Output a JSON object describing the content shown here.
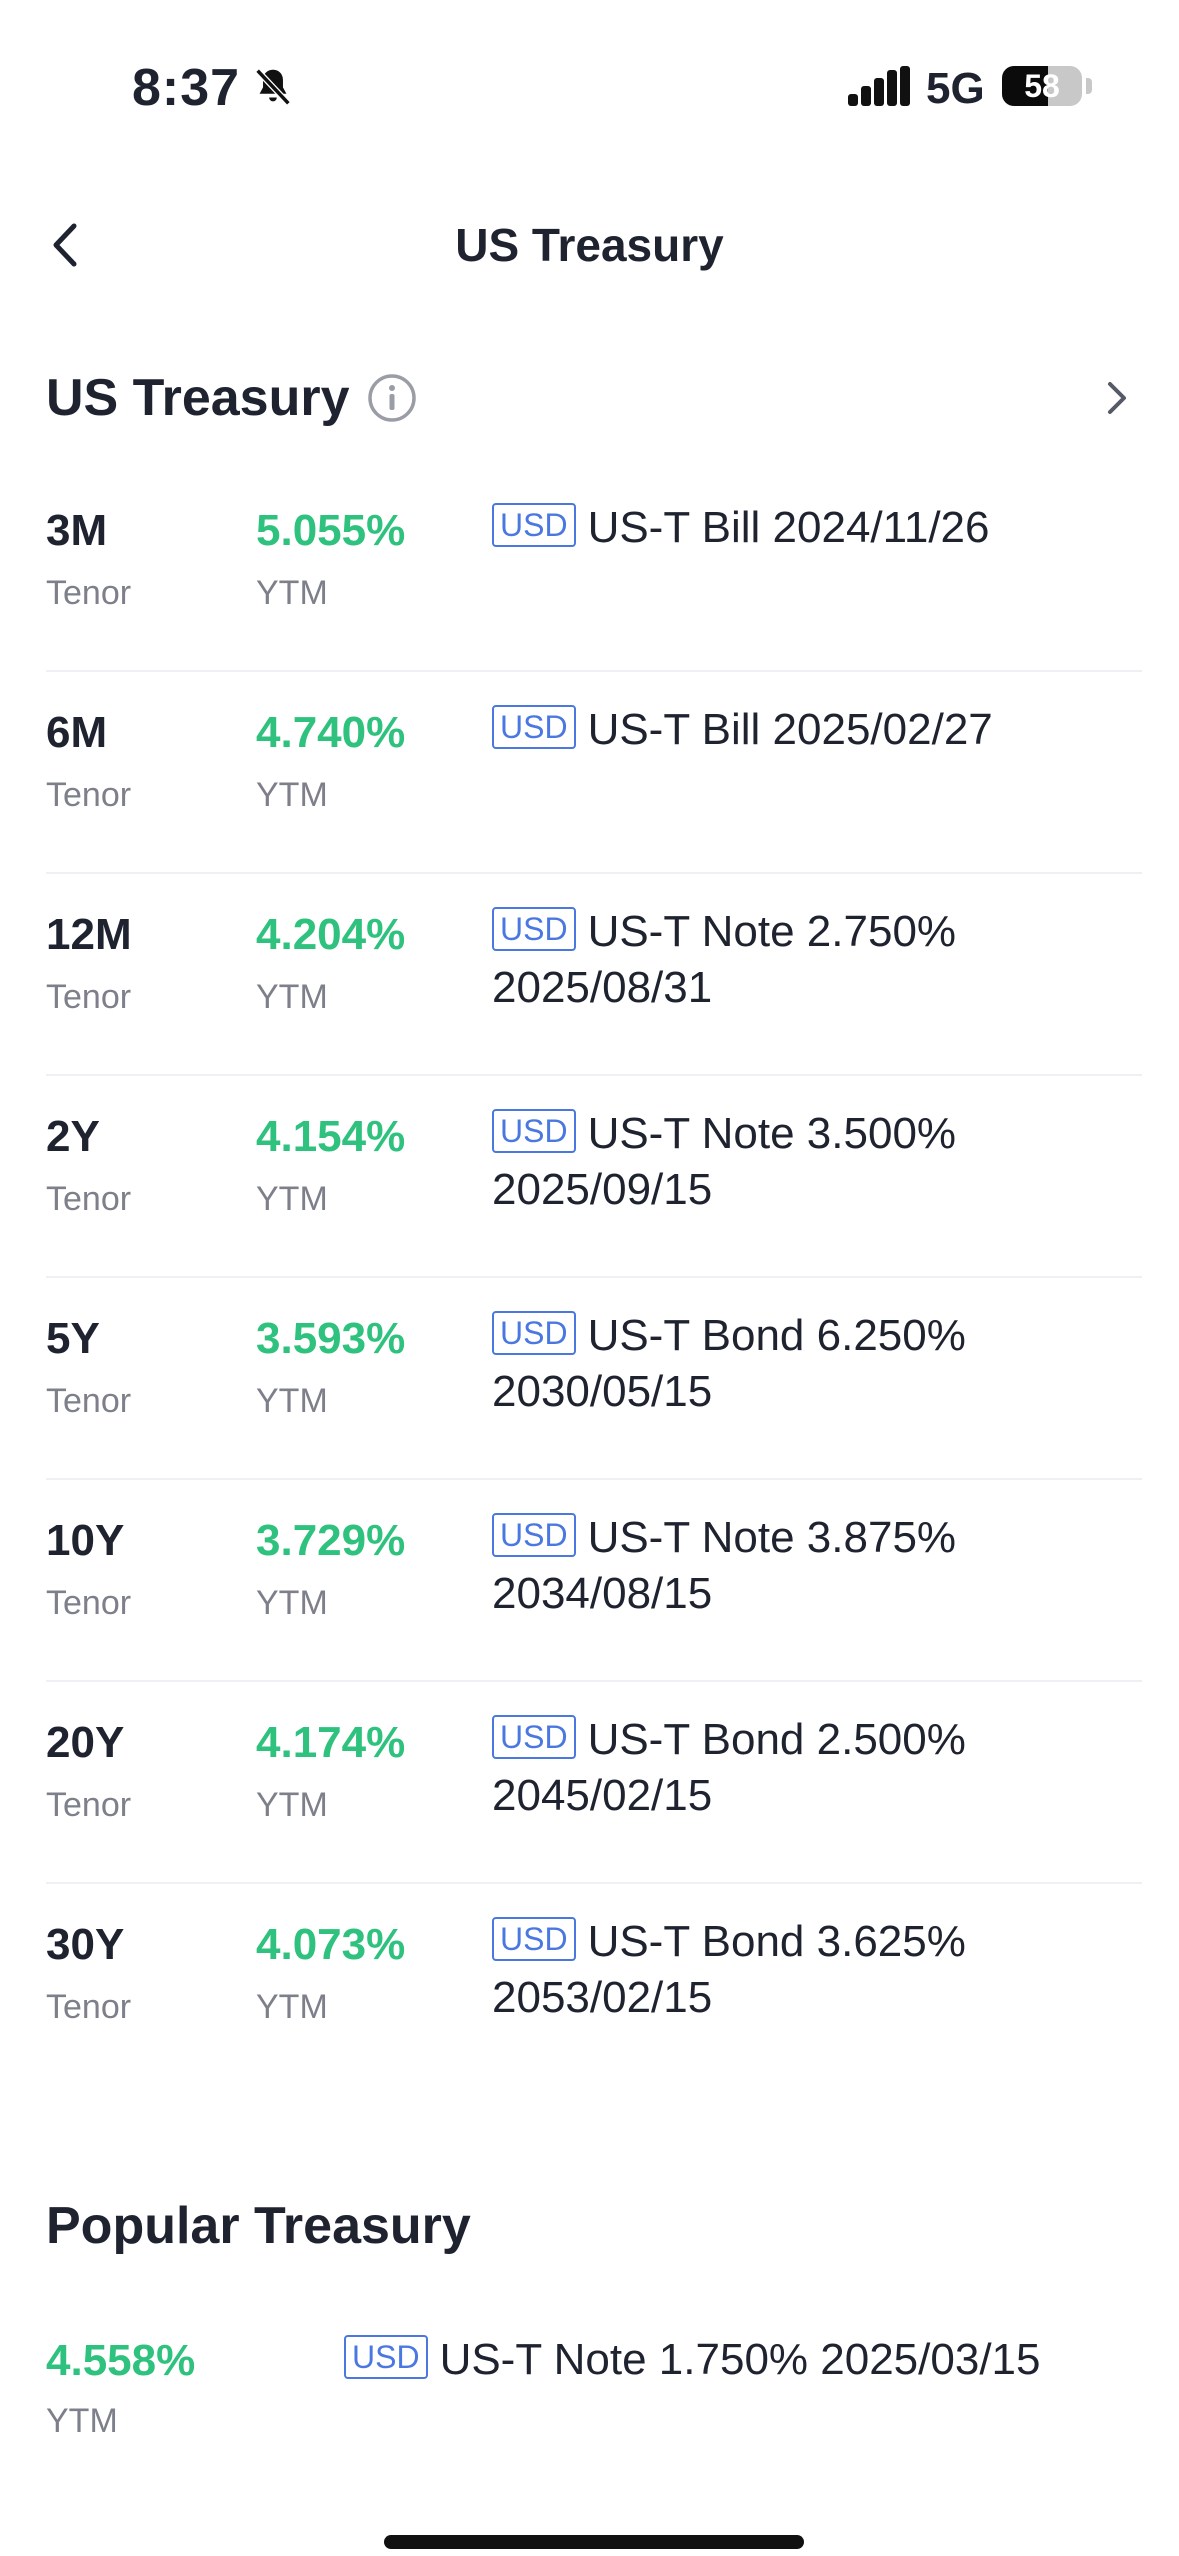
{
  "status_bar": {
    "time": "8:37",
    "network": "5G",
    "battery": "58",
    "battery_level": 0.58
  },
  "nav": {
    "title": "US Treasury",
    "back_icon": "chevron-left-icon"
  },
  "section": {
    "title": "US Treasury",
    "info_icon": "info-icon",
    "more_icon": "chevron-right-icon"
  },
  "labels": {
    "tenor": "Tenor",
    "ytm": "YTM",
    "currency": "USD"
  },
  "rows": [
    {
      "tenor": "3M",
      "ytm": "5.055%",
      "bond": "US-T Bill 2024/11/26"
    },
    {
      "tenor": "6M",
      "ytm": "4.740%",
      "bond": "US-T Bill 2025/02/27"
    },
    {
      "tenor": "12M",
      "ytm": "4.204%",
      "bond": "US-T Note 2.750% 2025/08/31"
    },
    {
      "tenor": "2Y",
      "ytm": "4.154%",
      "bond": "US-T Note 3.500% 2025/09/15"
    },
    {
      "tenor": "5Y",
      "ytm": "3.593%",
      "bond": "US-T Bond 6.250% 2030/05/15"
    },
    {
      "tenor": "10Y",
      "ytm": "3.729%",
      "bond": "US-T Note 3.875% 2034/08/15"
    },
    {
      "tenor": "20Y",
      "ytm": "4.174%",
      "bond": "US-T Bond 2.500% 2045/02/15"
    },
    {
      "tenor": "30Y",
      "ytm": "4.073%",
      "bond": "US-T Bond 3.625% 2053/02/15"
    }
  ],
  "popular": {
    "title": "Popular Treasury",
    "items": [
      {
        "ytm": "4.558%",
        "bond": "US-T Note 1.750% 2025/03/15"
      }
    ]
  },
  "colors": {
    "positive": "#2ec27e",
    "badge": "#4a78e0",
    "text": "#1f2330",
    "muted": "#7d808a"
  }
}
